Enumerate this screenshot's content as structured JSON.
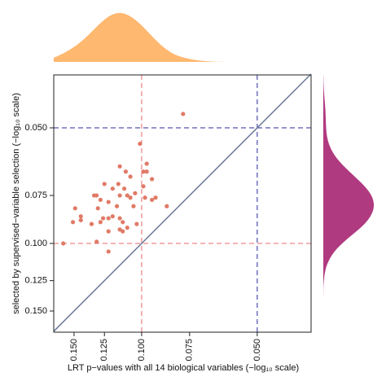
{
  "chart_data": {
    "type": "scatter",
    "x_label": "LRT p−values with all 14 biological variables (−log₁₀ scale)",
    "y_label": "selected by supervised−variable selection (−log₁₀ scale)",
    "scale": "-log10",
    "xlim": [
      0.1694,
      0.0362
    ],
    "ylim": [
      0.1703,
      0.0364
    ],
    "xticks": [
      {
        "value": 0.15,
        "label": "0.150"
      },
      {
        "value": 0.125,
        "label": "0.125"
      },
      {
        "value": 0.1,
        "label": "0.100"
      },
      {
        "value": 0.075,
        "label": "0.075"
      },
      {
        "value": 0.05,
        "label": "0.050"
      }
    ],
    "yticks": [
      {
        "value": 0.15,
        "label": "0.150"
      },
      {
        "value": 0.125,
        "label": "0.125"
      },
      {
        "value": 0.1,
        "label": "0.100"
      },
      {
        "value": 0.075,
        "label": "0.075"
      },
      {
        "value": 0.05,
        "label": "0.050"
      }
    ],
    "color": "#e07a66",
    "x": [
      0.078,
      0.101,
      0.097,
      0.097,
      0.099,
      0.114,
      0.11,
      0.107,
      0.125,
      0.115,
      0.119,
      0.111,
      0.099,
      0.094,
      0.104,
      0.109,
      0.114,
      0.131,
      0.133,
      0.107,
      0.098,
      0.094,
      0.128,
      0.092,
      0.086,
      0.122,
      0.149,
      0.13,
      0.116,
      0.105,
      0.144,
      0.119,
      0.114,
      0.122,
      0.126,
      0.151,
      0.135,
      0.128,
      0.144,
      0.112,
      0.103,
      0.112,
      0.122,
      0.114,
      0.109,
      0.131,
      0.122,
      0.16
    ],
    "y": [
      0.046,
      0.055,
      0.062,
      0.065,
      0.065,
      0.063,
      0.065,
      0.067,
      0.07,
      0.07,
      0.072,
      0.072,
      0.071,
      0.068,
      0.074,
      0.075,
      0.075,
      0.075,
      0.075,
      0.076,
      0.076,
      0.077,
      0.077,
      0.076,
      0.08,
      0.078,
      0.081,
      0.081,
      0.08,
      0.08,
      0.085,
      0.085,
      0.086,
      0.086,
      0.086,
      0.088,
      0.089,
      0.088,
      0.087,
      0.088,
      0.089,
      0.093,
      0.093,
      0.092,
      0.091,
      0.099,
      0.105,
      0.1
    ],
    "x_density_color": "#ffb870",
    "y_density_color": "#b03a80",
    "ref_lines": [
      {
        "value": 0.1,
        "color": "#e86a6a"
      },
      {
        "value": 0.05,
        "color": "#2a2aa0"
      }
    ],
    "diagonal_color": "#6a7a98"
  }
}
